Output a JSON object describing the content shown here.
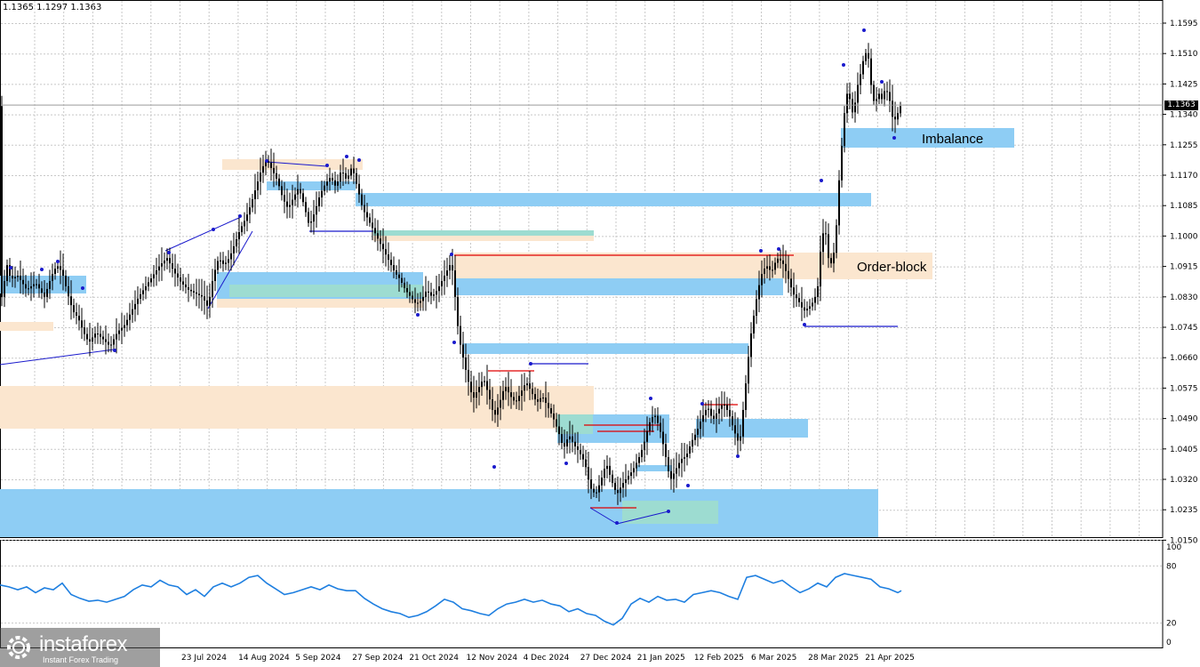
{
  "header": {
    "ohlc": "1.1365 1.1297 1.1363"
  },
  "price_tag": "1.1363",
  "logo": {
    "name": "instaforex",
    "tagline": "Instant Forex Trading"
  },
  "colors": {
    "candle": "#000000",
    "blue_zone": "#8ecdf4",
    "peach_zone": "#fbe6cf",
    "teal_zone": "#9ddcd1",
    "blue_line": "#1a1acc",
    "red_line": "#e00000",
    "oscillator": "#1e7fe0",
    "grid": "#c8c8c8"
  },
  "chart_data": {
    "type": "candlestick",
    "price_axis": {
      "ticks": [
        "1.1595",
        "1.1510",
        "1.1425",
        "1.1340",
        "1.1255",
        "1.1170",
        "1.1085",
        "1.1000",
        "1.0915",
        "1.0830",
        "1.0745",
        "1.0660",
        "1.0575",
        "1.0490",
        "1.0405",
        "1.0320",
        "1.0235",
        "1.0150"
      ],
      "range": [
        1.014,
        1.1645
      ]
    },
    "time_axis": {
      "labels": [
        "23 Jul 2024",
        "14 Aug 2024",
        "5 Sep 2024",
        "27 Sep 2024",
        "21 Oct 2024",
        "12 Nov 2024",
        "4 Dec 2024",
        "27 Dec 2024",
        "21 Jan 2025",
        "12 Feb 2025",
        "6 Mar 2025",
        "28 Mar 2025",
        "21 Apr 2025"
      ]
    },
    "oscillator_axis": {
      "ticks": [
        "100",
        "80",
        "20",
        "0"
      ],
      "range": [
        0,
        100
      ]
    },
    "zone_labels": {
      "imbalance": "Imbalance",
      "order_block": "Order-block"
    },
    "price_path": [
      [
        0,
        1.079
      ],
      [
        4,
        1.085
      ],
      [
        8,
        1.091
      ],
      [
        12,
        1.087
      ],
      [
        20,
        1.088
      ],
      [
        30,
        1.084
      ],
      [
        40,
        1.086
      ],
      [
        50,
        1.082
      ],
      [
        58,
        1.088
      ],
      [
        64,
        1.091
      ],
      [
        70,
        1.089
      ],
      [
        76,
        1.083
      ],
      [
        82,
        1.078
      ],
      [
        88,
        1.076
      ],
      [
        94,
        1.072
      ],
      [
        100,
        1.069
      ],
      [
        108,
        1.072
      ],
      [
        116,
        1.07
      ],
      [
        124,
        1.068
      ],
      [
        132,
        1.072
      ],
      [
        140,
        1.074
      ],
      [
        148,
        1.078
      ],
      [
        156,
        1.082
      ],
      [
        164,
        1.085
      ],
      [
        172,
        1.088
      ],
      [
        180,
        1.091
      ],
      [
        188,
        1.093
      ],
      [
        196,
        1.089
      ],
      [
        204,
        1.086
      ],
      [
        212,
        1.084
      ],
      [
        220,
        1.083
      ],
      [
        228,
        1.082
      ],
      [
        234,
        1.079
      ],
      [
        240,
        1.088
      ],
      [
        246,
        1.093
      ],
      [
        252,
        1.091
      ],
      [
        258,
        1.093
      ],
      [
        264,
        1.097
      ],
      [
        270,
        1.101
      ],
      [
        276,
        1.104
      ],
      [
        282,
        1.108
      ],
      [
        288,
        1.113
      ],
      [
        294,
        1.118
      ],
      [
        300,
        1.121
      ],
      [
        306,
        1.118
      ],
      [
        312,
        1.115
      ],
      [
        318,
        1.11
      ],
      [
        324,
        1.107
      ],
      [
        330,
        1.11
      ],
      [
        336,
        1.113
      ],
      [
        342,
        1.108
      ],
      [
        348,
        1.102
      ],
      [
        354,
        1.106
      ],
      [
        360,
        1.111
      ],
      [
        366,
        1.114
      ],
      [
        372,
        1.116
      ],
      [
        378,
        1.113
      ],
      [
        384,
        1.118
      ],
      [
        390,
        1.115
      ],
      [
        396,
        1.119
      ],
      [
        402,
        1.113
      ],
      [
        408,
        1.107
      ],
      [
        414,
        1.104
      ],
      [
        420,
        1.101
      ],
      [
        426,
        1.098
      ],
      [
        432,
        1.095
      ],
      [
        438,
        1.092
      ],
      [
        444,
        1.089
      ],
      [
        450,
        1.087
      ],
      [
        456,
        1.084
      ],
      [
        462,
        1.082
      ],
      [
        468,
        1.08
      ],
      [
        474,
        1.081
      ],
      [
        480,
        1.084
      ],
      [
        486,
        1.082
      ],
      [
        492,
        1.084
      ],
      [
        498,
        1.087
      ],
      [
        504,
        1.09
      ],
      [
        508,
        1.092
      ],
      [
        512,
        1.082
      ],
      [
        516,
        1.071
      ],
      [
        520,
        1.066
      ],
      [
        526,
        1.059
      ],
      [
        532,
        1.053
      ],
      [
        538,
        1.056
      ],
      [
        544,
        1.059
      ],
      [
        550,
        1.054
      ],
      [
        556,
        1.048
      ],
      [
        562,
        1.052
      ],
      [
        568,
        1.057
      ],
      [
        574,
        1.054
      ],
      [
        580,
        1.052
      ],
      [
        586,
        1.055
      ],
      [
        592,
        1.058
      ],
      [
        598,
        1.055
      ],
      [
        604,
        1.052
      ],
      [
        610,
        1.054
      ],
      [
        616,
        1.051
      ],
      [
        622,
        1.048
      ],
      [
        628,
        1.044
      ],
      [
        634,
        1.039
      ],
      [
        640,
        1.043
      ],
      [
        646,
        1.04
      ],
      [
        652,
        1.038
      ],
      [
        658,
        1.035
      ],
      [
        664,
        1.028
      ],
      [
        670,
        1.026
      ],
      [
        676,
        1.03
      ],
      [
        682,
        1.035
      ],
      [
        688,
        1.03
      ],
      [
        694,
        1.026
      ],
      [
        700,
        1.029
      ],
      [
        706,
        1.031
      ],
      [
        712,
        1.033
      ],
      [
        718,
        1.036
      ],
      [
        724,
        1.04
      ],
      [
        730,
        1.046
      ],
      [
        736,
        1.049
      ],
      [
        742,
        1.045
      ],
      [
        748,
        1.038
      ],
      [
        754,
        1.03
      ],
      [
        760,
        1.033
      ],
      [
        766,
        1.036
      ],
      [
        772,
        1.037
      ],
      [
        778,
        1.041
      ],
      [
        784,
        1.044
      ],
      [
        790,
        1.048
      ],
      [
        796,
        1.051
      ],
      [
        802,
        1.047
      ],
      [
        808,
        1.05
      ],
      [
        814,
        1.052
      ],
      [
        820,
        1.049
      ],
      [
        826,
        1.044
      ],
      [
        832,
        1.04
      ],
      [
        838,
        1.055
      ],
      [
        844,
        1.07
      ],
      [
        850,
        1.08
      ],
      [
        856,
        1.088
      ],
      [
        862,
        1.091
      ],
      [
        868,
        1.089
      ],
      [
        874,
        1.093
      ],
      [
        880,
        1.092
      ],
      [
        886,
        1.088
      ],
      [
        892,
        1.083
      ],
      [
        898,
        1.081
      ],
      [
        904,
        1.078
      ],
      [
        910,
        1.079
      ],
      [
        916,
        1.081
      ],
      [
        920,
        1.085
      ],
      [
        924,
        1.098
      ],
      [
        928,
        1.102
      ],
      [
        932,
        1.093
      ],
      [
        936,
        1.091
      ],
      [
        940,
        1.098
      ],
      [
        944,
        1.115
      ],
      [
        948,
        1.128
      ],
      [
        952,
        1.14
      ],
      [
        956,
        1.138
      ],
      [
        960,
        1.133
      ],
      [
        964,
        1.141
      ],
      [
        968,
        1.145
      ],
      [
        972,
        1.15
      ],
      [
        976,
        1.152
      ],
      [
        980,
        1.142
      ],
      [
        984,
        1.136
      ],
      [
        988,
        1.14
      ],
      [
        992,
        1.138
      ],
      [
        996,
        1.141
      ],
      [
        1000,
        1.139
      ],
      [
        1004,
        1.133
      ],
      [
        1008,
        1.132
      ],
      [
        1012,
        1.136
      ]
    ],
    "oscillator_path": [
      [
        0,
        60
      ],
      [
        10,
        58
      ],
      [
        20,
        55
      ],
      [
        30,
        58
      ],
      [
        40,
        52
      ],
      [
        50,
        57
      ],
      [
        60,
        55
      ],
      [
        70,
        62
      ],
      [
        80,
        50
      ],
      [
        90,
        46
      ],
      [
        100,
        43
      ],
      [
        110,
        44
      ],
      [
        120,
        42
      ],
      [
        130,
        45
      ],
      [
        140,
        48
      ],
      [
        150,
        55
      ],
      [
        160,
        60
      ],
      [
        170,
        58
      ],
      [
        180,
        65
      ],
      [
        190,
        60
      ],
      [
        200,
        58
      ],
      [
        210,
        50
      ],
      [
        220,
        55
      ],
      [
        230,
        48
      ],
      [
        240,
        58
      ],
      [
        250,
        62
      ],
      [
        260,
        58
      ],
      [
        270,
        62
      ],
      [
        280,
        68
      ],
      [
        290,
        70
      ],
      [
        300,
        62
      ],
      [
        310,
        56
      ],
      [
        320,
        50
      ],
      [
        330,
        52
      ],
      [
        340,
        55
      ],
      [
        350,
        58
      ],
      [
        360,
        55
      ],
      [
        370,
        60
      ],
      [
        380,
        56
      ],
      [
        390,
        54
      ],
      [
        400,
        54
      ],
      [
        410,
        46
      ],
      [
        420,
        40
      ],
      [
        430,
        35
      ],
      [
        440,
        32
      ],
      [
        450,
        30
      ],
      [
        460,
        26
      ],
      [
        470,
        28
      ],
      [
        480,
        32
      ],
      [
        490,
        38
      ],
      [
        500,
        45
      ],
      [
        510,
        42
      ],
      [
        520,
        35
      ],
      [
        530,
        33
      ],
      [
        540,
        30
      ],
      [
        550,
        28
      ],
      [
        560,
        35
      ],
      [
        570,
        40
      ],
      [
        580,
        42
      ],
      [
        590,
        45
      ],
      [
        600,
        42
      ],
      [
        610,
        44
      ],
      [
        620,
        40
      ],
      [
        630,
        38
      ],
      [
        640,
        32
      ],
      [
        650,
        35
      ],
      [
        660,
        30
      ],
      [
        670,
        28
      ],
      [
        680,
        22
      ],
      [
        690,
        18
      ],
      [
        700,
        25
      ],
      [
        710,
        40
      ],
      [
        720,
        46
      ],
      [
        730,
        42
      ],
      [
        740,
        48
      ],
      [
        750,
        44
      ],
      [
        760,
        45
      ],
      [
        770,
        42
      ],
      [
        780,
        50
      ],
      [
        790,
        52
      ],
      [
        800,
        54
      ],
      [
        810,
        52
      ],
      [
        820,
        48
      ],
      [
        830,
        45
      ],
      [
        840,
        68
      ],
      [
        850,
        70
      ],
      [
        860,
        66
      ],
      [
        870,
        62
      ],
      [
        880,
        65
      ],
      [
        890,
        58
      ],
      [
        900,
        52
      ],
      [
        910,
        56
      ],
      [
        920,
        62
      ],
      [
        930,
        58
      ],
      [
        940,
        68
      ],
      [
        950,
        72
      ],
      [
        960,
        70
      ],
      [
        970,
        68
      ],
      [
        980,
        66
      ],
      [
        990,
        58
      ],
      [
        1000,
        56
      ],
      [
        1010,
        52
      ],
      [
        1014,
        54
      ]
    ]
  }
}
